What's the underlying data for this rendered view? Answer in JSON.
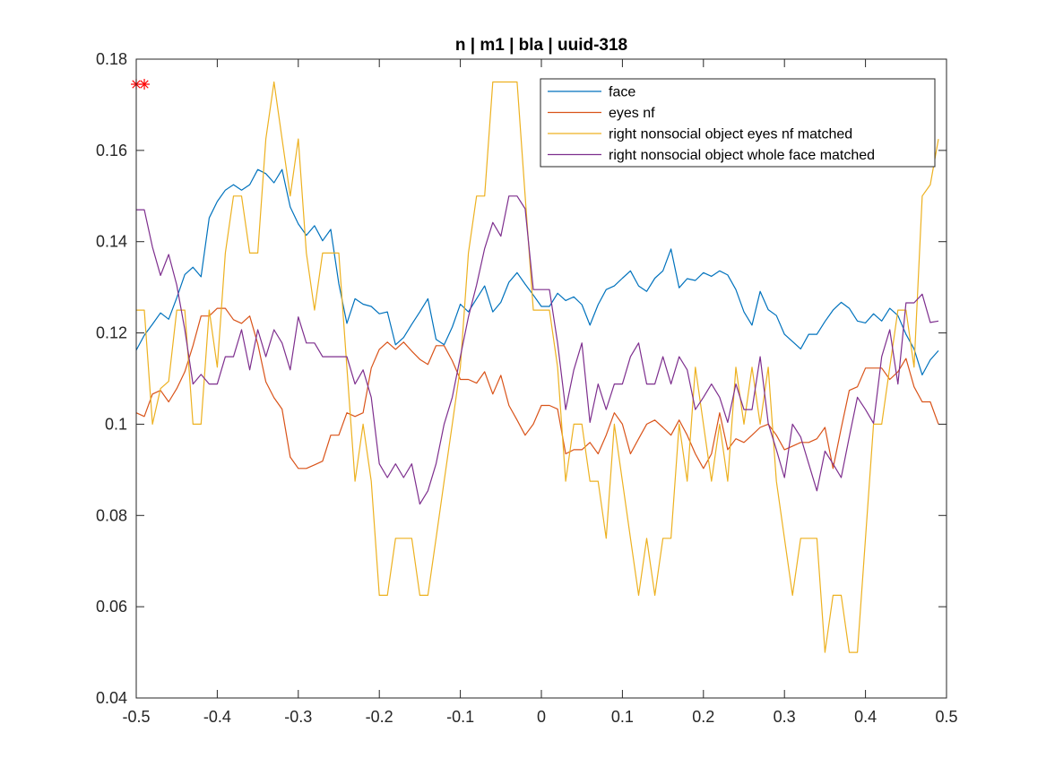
{
  "chart_data": {
    "type": "line",
    "title": "n | m1 | bla | uuid-318",
    "xlabel": "",
    "ylabel": "",
    "xlim": [
      -0.5,
      0.5
    ],
    "ylim": [
      0.04,
      0.18
    ],
    "xticks": [
      -0.5,
      -0.4,
      -0.3,
      -0.2,
      -0.1,
      0,
      0.1,
      0.2,
      0.3,
      0.4,
      0.5
    ],
    "xtick_labels": [
      "-0.5",
      "-0.4",
      "-0.3",
      "-0.2",
      "-0.1",
      "0",
      "0.1",
      "0.2",
      "0.3",
      "0.4",
      "0.5"
    ],
    "yticks": [
      0.04,
      0.06,
      0.08,
      0.1,
      0.12,
      0.14,
      0.16,
      0.18
    ],
    "ytick_labels": [
      "0.04",
      "0.06",
      "0.08",
      "0.1",
      "0.12",
      "0.14",
      "0.16",
      "0.18"
    ],
    "grid": false,
    "legend_position": "top-right",
    "x": [
      -0.5,
      -0.49,
      -0.48,
      -0.47,
      -0.46,
      -0.45,
      -0.44,
      -0.43,
      -0.42,
      -0.41,
      -0.4,
      -0.39,
      -0.38,
      -0.37,
      -0.36,
      -0.35,
      -0.34,
      -0.33,
      -0.32,
      -0.31,
      -0.3,
      -0.29,
      -0.28,
      -0.27,
      -0.26,
      -0.25,
      -0.24,
      -0.23,
      -0.22,
      -0.21,
      -0.2,
      -0.19,
      -0.18,
      -0.17,
      -0.16,
      -0.15,
      -0.14,
      -0.13,
      -0.12,
      -0.11,
      -0.1,
      -0.09,
      -0.08,
      -0.07,
      -0.06,
      -0.05,
      -0.04,
      -0.03,
      -0.02,
      -0.01,
      0.0,
      0.01,
      0.02,
      0.03,
      0.04,
      0.05,
      0.06,
      0.07,
      0.08,
      0.09,
      0.1,
      0.11,
      0.12,
      0.13,
      0.14,
      0.15,
      0.16,
      0.17,
      0.18,
      0.19,
      0.2,
      0.21,
      0.22,
      0.23,
      0.24,
      0.25,
      0.26,
      0.27,
      0.28,
      0.29,
      0.3,
      0.31,
      0.32,
      0.33,
      0.34,
      0.35,
      0.36,
      0.37,
      0.38,
      0.39,
      0.4,
      0.41,
      0.42,
      0.43,
      0.44,
      0.45,
      0.46,
      0.47,
      0.48,
      0.49
    ],
    "series": [
      {
        "name": "face",
        "color": "#0072BD",
        "values": [
          0.1162,
          0.1195,
          0.1219,
          0.1244,
          0.123,
          0.1277,
          0.1328,
          0.1344,
          0.1323,
          0.1452,
          0.1488,
          0.1513,
          0.1525,
          0.1513,
          0.1525,
          0.1558,
          0.1549,
          0.1529,
          0.1558,
          0.1476,
          0.1439,
          0.1414,
          0.1435,
          0.1402,
          0.1427,
          0.1308,
          0.1221,
          0.1275,
          0.1263,
          0.1258,
          0.1242,
          0.1246,
          0.1174,
          0.119,
          0.1219,
          0.1246,
          0.1275,
          0.1186,
          0.1174,
          0.1213,
          0.1263,
          0.1246,
          0.1275,
          0.1303,
          0.1246,
          0.1267,
          0.1311,
          0.1332,
          0.1307,
          0.1283,
          0.1258,
          0.1258,
          0.1287,
          0.1271,
          0.1279,
          0.1262,
          0.1217,
          0.1262,
          0.1295,
          0.1303,
          0.132,
          0.1336,
          0.1303,
          0.1291,
          0.132,
          0.1336,
          0.1384,
          0.1299,
          0.1319,
          0.1315,
          0.1332,
          0.1324,
          0.1336,
          0.1327,
          0.1295,
          0.1246,
          0.1217,
          0.1291,
          0.1251,
          0.1238,
          0.1197,
          0.1181,
          0.1165,
          0.1197,
          0.1197,
          0.1225,
          0.125,
          0.1267,
          0.1254,
          0.1226,
          0.1222,
          0.1242,
          0.1226,
          0.1254,
          0.1238,
          0.1197,
          0.1165,
          0.1108,
          0.1141,
          0.1161
        ]
      },
      {
        "name": "eyes nf",
        "color": "#D95319",
        "values": [
          0.1025,
          0.1017,
          0.1066,
          0.1074,
          0.1049,
          0.1078,
          0.1115,
          0.1172,
          0.1237,
          0.1237,
          0.1254,
          0.1254,
          0.1229,
          0.1221,
          0.1237,
          0.1176,
          0.1093,
          0.1058,
          0.1033,
          0.0928,
          0.0903,
          0.0903,
          0.0911,
          0.0919,
          0.0976,
          0.0976,
          0.1025,
          0.1017,
          0.1025,
          0.1123,
          0.1164,
          0.118,
          0.1164,
          0.118,
          0.116,
          0.1142,
          0.1131,
          0.1172,
          0.1172,
          0.1139,
          0.1098,
          0.1098,
          0.109,
          0.1115,
          0.1066,
          0.1107,
          0.1041,
          0.1009,
          0.0976,
          0.1,
          0.1041,
          0.1041,
          0.1033,
          0.0935,
          0.0944,
          0.0944,
          0.096,
          0.0935,
          0.0976,
          0.1025,
          0.1,
          0.0935,
          0.0968,
          0.1,
          0.1009,
          0.0993,
          0.0976,
          0.1009,
          0.0976,
          0.0935,
          0.0903,
          0.0935,
          0.1025,
          0.0944,
          0.0968,
          0.096,
          0.0976,
          0.0993,
          0.1,
          0.0976,
          0.0944,
          0.0952,
          0.096,
          0.096,
          0.0968,
          0.0993,
          0.0903,
          0.0991,
          0.1074,
          0.1082,
          0.1123,
          0.1123,
          0.1123,
          0.1098,
          0.1115,
          0.1144,
          0.1082,
          0.1049,
          0.1049,
          0.1
        ]
      },
      {
        "name": "right nonsocial object eyes nf matched",
        "color": "#EDB120",
        "values": [
          0.125,
          0.125,
          0.1,
          0.1078,
          0.1094,
          0.125,
          0.125,
          0.1,
          0.1,
          0.125,
          0.1125,
          0.1375,
          0.15,
          0.15,
          0.1375,
          0.1375,
          0.1625,
          0.175,
          0.1625,
          0.15,
          0.1625,
          0.1375,
          0.125,
          0.1375,
          0.1375,
          0.1375,
          0.1125,
          0.0875,
          0.1,
          0.0875,
          0.0625,
          0.0625,
          0.075,
          0.075,
          0.075,
          0.0625,
          0.0625,
          0.075,
          0.0875,
          0.1,
          0.1125,
          0.1375,
          0.15,
          0.15,
          0.175,
          0.175,
          0.175,
          0.175,
          0.15,
          0.125,
          0.125,
          0.125,
          0.1125,
          0.0875,
          0.1,
          0.1,
          0.0875,
          0.0875,
          0.075,
          0.1,
          0.0875,
          0.075,
          0.0625,
          0.075,
          0.0625,
          0.075,
          0.075,
          0.1,
          0.0875,
          0.1125,
          0.1,
          0.0875,
          0.1,
          0.0875,
          0.1125,
          0.1,
          0.1125,
          0.1,
          0.1125,
          0.0875,
          0.075,
          0.0625,
          0.075,
          0.075,
          0.075,
          0.05,
          0.0625,
          0.0625,
          0.05,
          0.05,
          0.075,
          0.1,
          0.1,
          0.1125,
          0.125,
          0.125,
          0.1125,
          0.15,
          0.1525,
          0.1625
        ]
      },
      {
        "name": "right nonsocial object whole face matched",
        "color": "#7E2F8E",
        "values": [
          0.147,
          0.147,
          0.1388,
          0.1326,
          0.1372,
          0.1305,
          0.1207,
          0.1088,
          0.1109,
          0.1088,
          0.1088,
          0.1148,
          0.1148,
          0.1207,
          0.1119,
          0.1207,
          0.1148,
          0.1207,
          0.1178,
          0.1119,
          0.1235,
          0.1178,
          0.1178,
          0.1148,
          0.1148,
          0.1148,
          0.1148,
          0.1088,
          0.1119,
          0.1059,
          0.0913,
          0.0883,
          0.0913,
          0.0883,
          0.0913,
          0.0825,
          0.0854,
          0.0913,
          0.1,
          0.1059,
          0.1148,
          0.1235,
          0.1305,
          0.1385,
          0.1442,
          0.1412,
          0.15,
          0.15,
          0.1472,
          0.1295,
          0.1295,
          0.1295,
          0.1178,
          0.1032,
          0.1119,
          0.1178,
          0.1004,
          0.1088,
          0.1032,
          0.1088,
          0.1088,
          0.1148,
          0.1178,
          0.1088,
          0.1088,
          0.1148,
          0.1088,
          0.1148,
          0.1119,
          0.1032,
          0.1059,
          0.1088,
          0.1059,
          0.1004,
          0.1088,
          0.1032,
          0.1032,
          0.1148,
          0.1002,
          0.0944,
          0.0883,
          0.1,
          0.0972,
          0.0913,
          0.0854,
          0.0941,
          0.0913,
          0.0883,
          0.0972,
          0.1059,
          0.1032,
          0.1002,
          0.1148,
          0.1207,
          0.1088,
          0.1266,
          0.1266,
          0.1285,
          0.1223,
          0.1226
        ]
      }
    ],
    "annotation_markers": {
      "symbol": "*",
      "color": "#FF0000",
      "x": [
        -0.5,
        -0.49
      ],
      "y": [
        0.1745,
        0.1745
      ]
    }
  }
}
